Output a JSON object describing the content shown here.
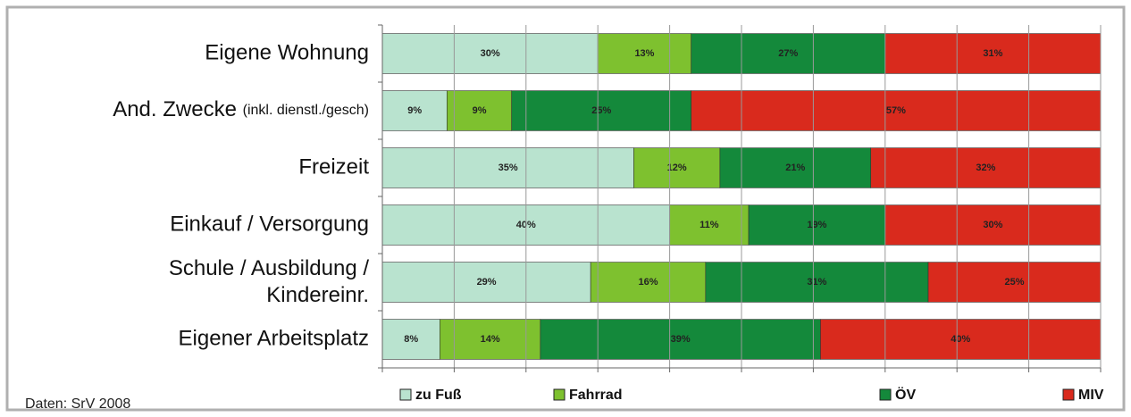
{
  "chart_data": {
    "type": "stacked-barh",
    "categories": [
      "Eigene Wohnung",
      "And. Zwecke (inkl. dienstl./gesch)",
      "Freizeit",
      "Einkauf / Versorgung",
      "Schule / Ausbildung / Kindereinr.",
      "Eigener Arbeitsplatz"
    ],
    "series": [
      {
        "name": "zu Fuß",
        "color": "#b9e3cf",
        "values": [
          30,
          9,
          35,
          40,
          29,
          8
        ],
        "value_labels": [
          "30%",
          "9%",
          "35%",
          "40%",
          "29%",
          "8%"
        ]
      },
      {
        "name": "Fahrrad",
        "color": "#7ec12f",
        "values": [
          13,
          9,
          12,
          11,
          16,
          14
        ],
        "value_labels": [
          "13%",
          "9%",
          "12%",
          "11%",
          "16%",
          "14%"
        ]
      },
      {
        "name": "ÖV",
        "color": "#14893b",
        "values": [
          27,
          25,
          21,
          19,
          31,
          39
        ],
        "value_labels": [
          "27%",
          "25%",
          "21%",
          "19%",
          "31%",
          "39%"
        ]
      },
      {
        "name": "MIV",
        "color": "#d92a1d",
        "values": [
          31,
          57,
          32,
          30,
          25,
          40
        ],
        "value_labels": [
          "31%",
          "57%",
          "32%",
          "30%",
          "25%",
          "40%"
        ]
      }
    ],
    "xlim": [
      0,
      100
    ],
    "xticks": [
      0,
      10,
      20,
      30,
      40,
      50,
      60,
      70,
      80,
      90,
      100
    ],
    "grid": true,
    "note": "Daten: SrV 2008"
  }
}
